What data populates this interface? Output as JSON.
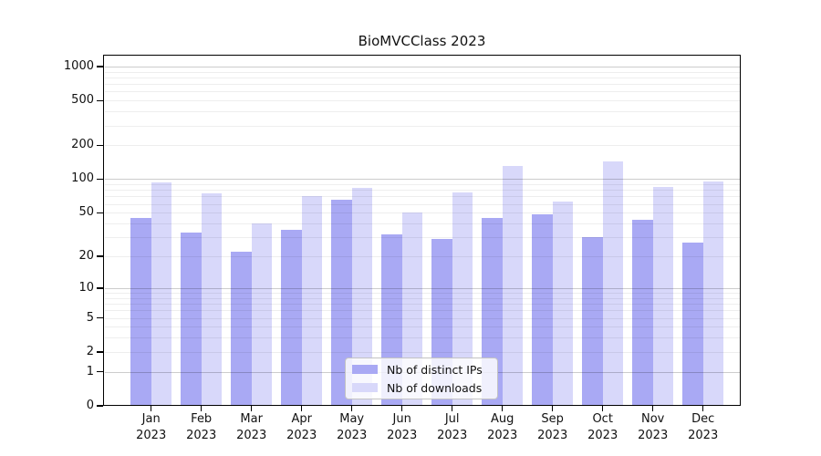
{
  "title": "BioMVCClass 2023",
  "year": "2023",
  "chart_data": {
    "type": "bar",
    "title": "BioMVCClass 2023",
    "y_scale": "log10(value+1)",
    "categories": [
      "Jan",
      "Feb",
      "Mar",
      "Apr",
      "May",
      "Jun",
      "Jul",
      "Aug",
      "Sep",
      "Oct",
      "Nov",
      "Dec"
    ],
    "year": "2023",
    "series": [
      {
        "name": "Nb of distinct IPs",
        "color": "#a9a9f4",
        "values": [
          45,
          33,
          22,
          35,
          66,
          32,
          29,
          45,
          48,
          30,
          43,
          27
        ]
      },
      {
        "name": "Nb of downloads",
        "color": "#d8d8fa",
        "values": [
          93,
          75,
          40,
          71,
          83,
          50,
          76,
          130,
          63,
          143,
          85,
          95
        ]
      }
    ],
    "y_ticks": [
      0,
      1,
      2,
      5,
      10,
      20,
      50,
      100,
      200,
      500,
      1000
    ],
    "ylim": [
      0,
      1270
    ],
    "xlabel": "",
    "ylabel": "",
    "grid": "horizontal major+minor",
    "legend_position": "bottom-center"
  },
  "colors": {
    "ips_bar": "#a9a9f4",
    "downloads_bar": "#d8d8fa",
    "major_grid": "rgba(0,0,0,0.20)",
    "minor_grid": "rgba(0,0,0,0.065)",
    "spine": "#000000",
    "background": "#ffffff"
  }
}
